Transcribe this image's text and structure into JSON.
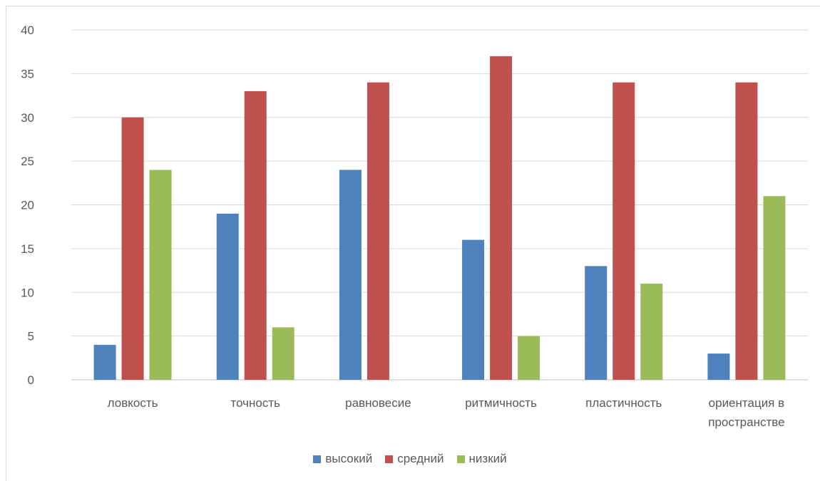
{
  "chart_data": {
    "type": "bar",
    "categories": [
      "ловкость",
      "точность",
      "равновесие",
      "ритмичность",
      "пластичность",
      "ориентация в пространстве"
    ],
    "category_lines": [
      [
        "ловкость"
      ],
      [
        "точность"
      ],
      [
        "равновесие"
      ],
      [
        "ритмичность"
      ],
      [
        "пластичность"
      ],
      [
        "ориентация в",
        "пространстве"
      ]
    ],
    "series": [
      {
        "name": "высокий",
        "color": "#4f81bd",
        "values": [
          4,
          19,
          24,
          16,
          13,
          3
        ]
      },
      {
        "name": "средний",
        "color": "#c0504d",
        "values": [
          30,
          33,
          34,
          37,
          34,
          34
        ]
      },
      {
        "name": "низкий",
        "color": "#9bbb59",
        "values": [
          24,
          6,
          0,
          5,
          11,
          21
        ]
      }
    ],
    "ylim": [
      0,
      40
    ],
    "yticks": [
      0,
      5,
      10,
      15,
      20,
      25,
      30,
      35,
      40
    ],
    "grid": true,
    "legend": "bottom",
    "title": "",
    "xlabel": "",
    "ylabel": ""
  }
}
